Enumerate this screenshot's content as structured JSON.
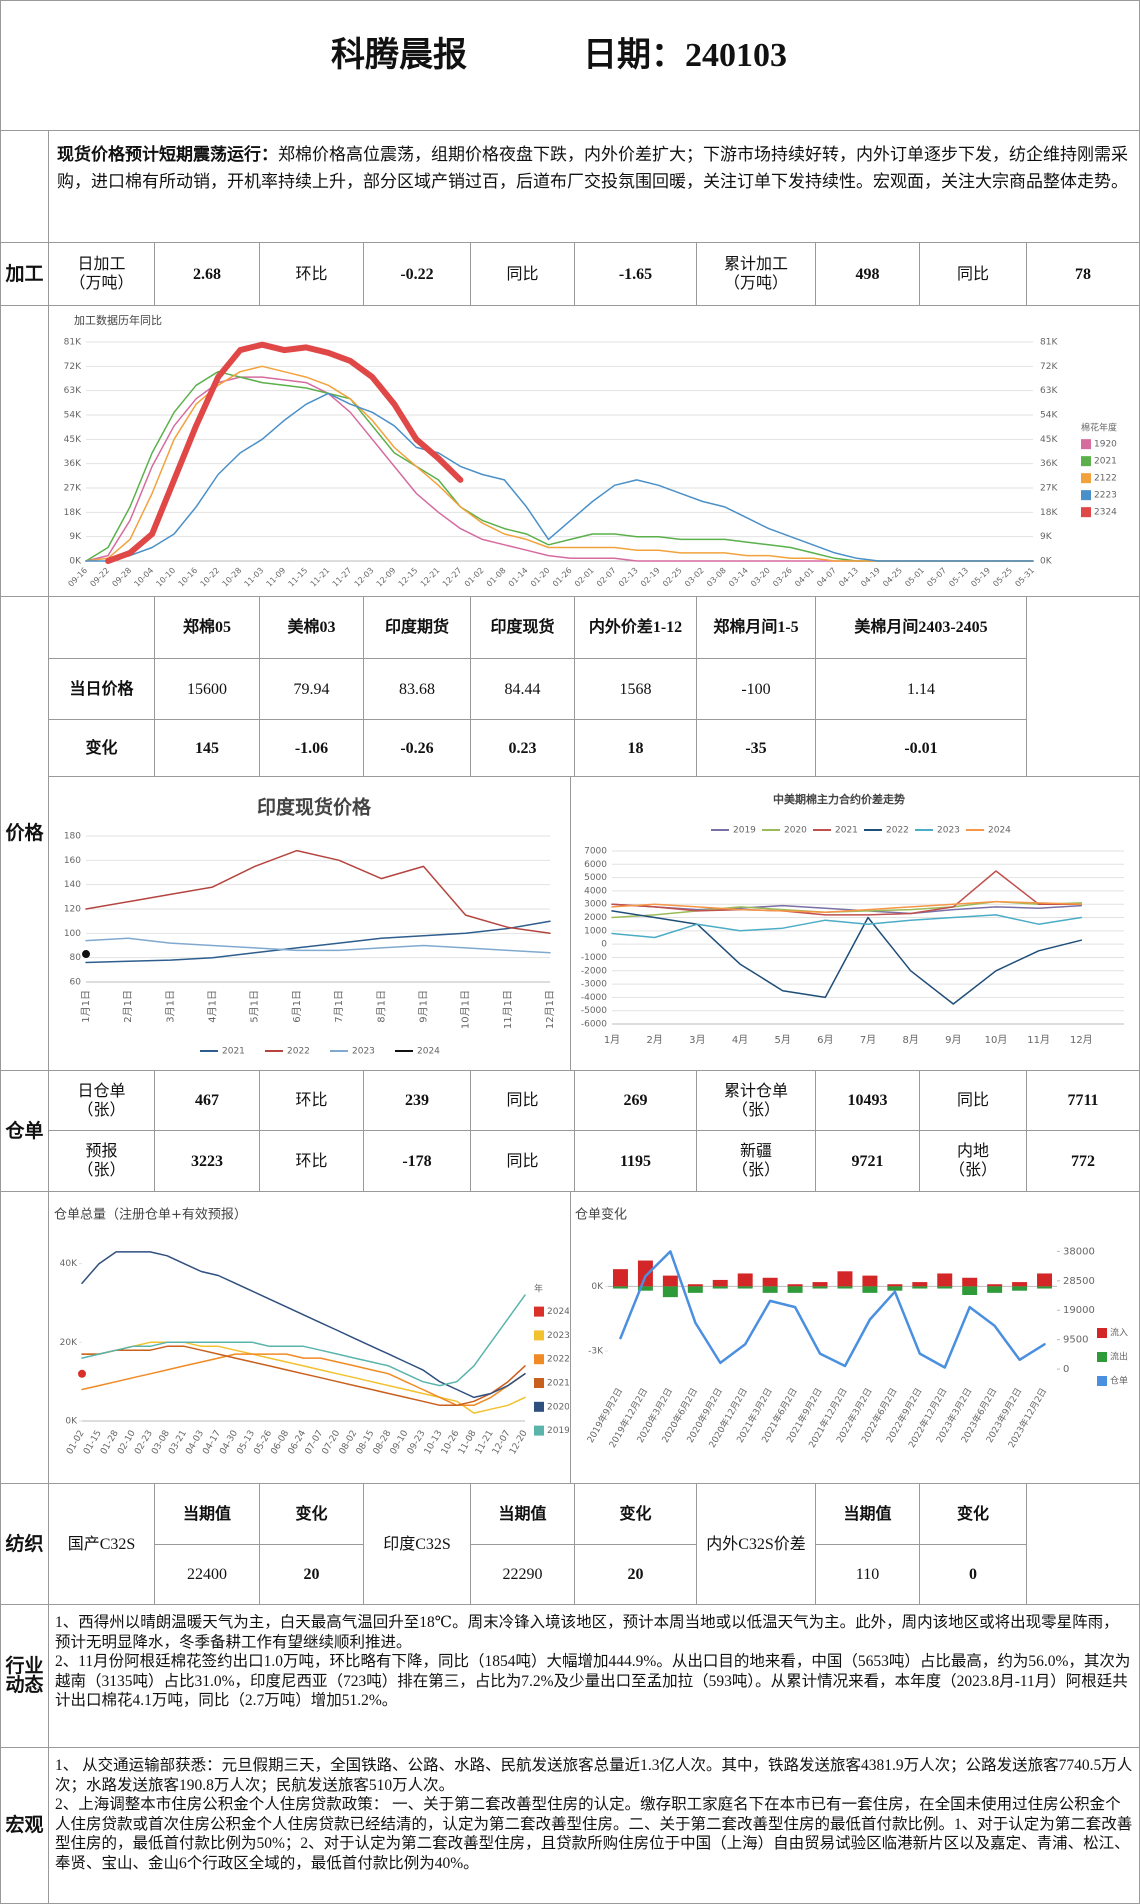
{
  "header": {
    "title": "科腾晨报",
    "date": "日期：240103"
  },
  "summary": {
    "lead": "现货价格预计短期震荡运行：",
    "text": "郑棉价格高位震荡，组期价格夜盘下跌，内外价差扩大；下游市场持续好转，内外订单逐步下发，纺企维持刚需采购，进口棉有所动销，开机率持续上升，部分区域产销过百，后道布厂交投氛围回暖，关注订单下发持续性。宏观面，关注大宗商品整体走势。"
  },
  "processing": {
    "label": "加工",
    "cells": [
      "日加工\n（万吨）",
      2.68,
      "环比",
      -0.22,
      "同比",
      -1.65,
      "累计加工\n（万吨）",
      498,
      "同比",
      78
    ]
  },
  "prices": {
    "label": "价格",
    "header": [
      "郑棉05",
      "美棉03",
      "印度期货",
      "印度现货",
      "内外价差1-12",
      "郑棉月间1-5",
      "美棉月间2403-2405"
    ],
    "rows": [
      {
        "name": "当日价格",
        "values": [
          15600,
          79.94,
          83.68,
          84.44,
          1568,
          -100,
          1.14
        ]
      },
      {
        "name": "变化",
        "values": [
          145,
          -1.06,
          -0.26,
          0.23,
          18,
          -35,
          -0.01
        ]
      }
    ]
  },
  "warehouse": {
    "label": "仓单",
    "rows": [
      [
        "日仓单\n（张）",
        467,
        "环比",
        239,
        "同比",
        269,
        "累计仓单\n（张）",
        10493,
        "同比",
        7711
      ],
      [
        "预报\n（张）",
        3223,
        "环比",
        -178,
        "同比",
        1195,
        "新疆\n（张）",
        9721,
        "内地\n（张）",
        772
      ]
    ]
  },
  "textile": {
    "label": "纺织",
    "groups": [
      {
        "name": "国产C32S",
        "headers": [
          "当期值",
          "变化"
        ],
        "values": [
          22400,
          20
        ]
      },
      {
        "name": "印度C32S",
        "headers": [
          "当期值",
          "变化"
        ],
        "values": [
          22290,
          20
        ]
      },
      {
        "name": "内外C32S价差",
        "headers": [
          "当期值",
          "变化"
        ],
        "values": [
          110,
          0
        ]
      }
    ]
  },
  "industry": {
    "label": "行业\n动态",
    "paragraphs": [
      "1、西得州以晴朗温暖天气为主，白天最高气温回升至18℃。周末冷锋入境该地区，预计本周当地或以低温天气为主。此外，周内该地区或将出现零星阵雨，预计无明显降水，冬季备耕工作有望继续顺利推进。",
      "2、11月份阿根廷棉花签约出口1.0万吨，环比略有下降，同比（1854吨）大幅增加444.9%。从出口目的地来看，中国（5653吨）占比最高，约为56.0%，其次为越南（3135吨）占比31.0%，印度尼西亚（723吨）排在第三，占比为7.2%及少量出口至孟加拉（593吨）。从累计情况来看，本年度（2023.8月-11月）阿根廷共计出口棉花4.1万吨，同比（2.7万吨）增加51.2%。"
    ]
  },
  "macro": {
    "label": "宏观",
    "paragraphs": [
      "1、 从交通运输部获悉：元旦假期三天，全国铁路、公路、水路、民航发送旅客总量近1.3亿人次。其中，铁路发送旅客4381.9万人次；公路发送旅客7740.5万人次；水路发送旅客190.8万人次；民航发送旅客510万人次。",
      "2、上海调整本市住房公积金个人住房贷款政策： 一、关于第二套改善型住房的认定。缴存职工家庭名下在本市已有一套住房，在全国未使用过住房公积金个人住房贷款或首次住房公积金个人住房贷款已经结清的，认定为第二套改善型住房。二、关于第二套改善型住房的最低首付款比例。1、对于认定为第二套改善型住房的，最低首付款比例为50%；2、对于认定为第二套改善型住房，且贷款所购住房位于中国（上海）自由贸易试验区临港新片区以及嘉定、青浦、松江、奉贤、宝山、金山6个行政区全域的，最低首付款比例为40%。"
    ]
  },
  "charts": [
    {
      "type": "line",
      "title": "加工数据历年同比",
      "legend": "right",
      "legend_title": "棉花年度",
      "grid": true,
      "mirror_y": true,
      "categories": [
        "09-16",
        "09-22",
        "09-28",
        "10-04",
        "10-10",
        "10-16",
        "10-22",
        "10-28",
        "11-03",
        "11-09",
        "11-15",
        "11-21",
        "11-27",
        "12-03",
        "12-09",
        "12-15",
        "12-21",
        "12-27",
        "01-02",
        "01-08",
        "01-14",
        "01-20",
        "01-26",
        "02-01",
        "02-07",
        "02-13",
        "02-19",
        "02-25",
        "03-02",
        "03-08",
        "03-14",
        "03-20",
        "03-26",
        "04-01",
        "04-07",
        "04-13",
        "04-19",
        "04-25",
        "05-01",
        "05-07",
        "05-13",
        "05-19",
        "05-25",
        "05-31"
      ],
      "ylim": [
        0,
        81
      ],
      "yticks": [
        {
          "value": 0,
          "label": "0K"
        },
        {
          "value": 9,
          "label": "9K"
        },
        {
          "value": 18,
          "label": "18K"
        },
        {
          "value": 27,
          "label": "27K"
        },
        {
          "value": 36,
          "label": "36K"
        },
        {
          "value": 45,
          "label": "45K"
        },
        {
          "value": 54,
          "label": "54K"
        },
        {
          "value": 63,
          "label": "63K"
        },
        {
          "value": 72,
          "label": "72K"
        },
        {
          "value": 81,
          "label": "81K"
        }
      ],
      "series": [
        {
          "name": "1920",
          "color": "#d66ba0",
          "values": [
            0,
            2,
            15,
            35,
            50,
            60,
            66,
            68,
            68,
            67,
            66,
            62,
            55,
            45,
            35,
            25,
            18,
            12,
            8,
            6,
            4,
            2,
            1,
            1,
            1,
            0,
            0,
            0,
            0,
            0,
            0,
            0,
            0,
            0,
            0,
            0,
            0,
            0,
            0,
            0,
            0,
            0,
            0,
            0
          ]
        },
        {
          "name": "2021",
          "color": "#5bb04b",
          "values": [
            0,
            5,
            20,
            40,
            55,
            65,
            70,
            68,
            66,
            65,
            64,
            62,
            60,
            50,
            40,
            35,
            30,
            20,
            15,
            12,
            10,
            6,
            8,
            10,
            10,
            9,
            9,
            8,
            8,
            8,
            7,
            6,
            5,
            3,
            1,
            0,
            0,
            0,
            0,
            0,
            0,
            0,
            0,
            0
          ]
        },
        {
          "name": "2122",
          "color": "#f2a23c",
          "values": [
            0,
            1,
            8,
            25,
            45,
            58,
            65,
            70,
            72,
            70,
            68,
            65,
            60,
            52,
            42,
            35,
            28,
            20,
            14,
            10,
            8,
            5,
            5,
            5,
            5,
            4,
            4,
            3,
            3,
            3,
            2,
            2,
            1,
            1,
            0,
            0,
            0,
            0,
            0,
            0,
            0,
            0,
            0,
            0
          ]
        },
        {
          "name": "2223",
          "color": "#4a90c8",
          "values": [
            0,
            0,
            2,
            5,
            10,
            20,
            32,
            40,
            45,
            52,
            58,
            62,
            58,
            55,
            50,
            42,
            40,
            35,
            32,
            30,
            20,
            8,
            15,
            22,
            28,
            30,
            28,
            25,
            22,
            20,
            16,
            12,
            9,
            6,
            3,
            1,
            0,
            0,
            0,
            0,
            0,
            0,
            0,
            0
          ]
        },
        {
          "name": "2324",
          "color": "#e04848",
          "line_width": 6,
          "values": [
            null,
            0,
            3,
            10,
            30,
            50,
            68,
            78,
            80,
            78,
            79,
            77,
            74,
            68,
            58,
            45,
            38,
            30,
            null,
            null,
            null,
            null,
            null,
            null,
            null,
            null,
            null,
            null,
            null,
            null,
            null,
            null,
            null,
            null,
            null,
            null,
            null,
            null,
            null,
            null,
            null,
            null,
            null,
            null
          ]
        }
      ]
    },
    {
      "type": "line",
      "title": "印度现货价格",
      "legend": "bottom",
      "grid": true,
      "categories": [
        "1月1日",
        "2月1日",
        "3月1日",
        "4月1日",
        "5月1日",
        "6月1日",
        "7月1日",
        "8月1日",
        "9月1日",
        "10月1日",
        "11月1日",
        "12月1日"
      ],
      "ylim": [
        60,
        180
      ],
      "yticks": [
        60,
        80,
        100,
        120,
        140,
        160,
        180
      ],
      "series": [
        {
          "name": "2021",
          "color": "#2e5d8e",
          "values": [
            76,
            77,
            78,
            80,
            84,
            88,
            92,
            96,
            98,
            100,
            104,
            110
          ]
        },
        {
          "name": "2022",
          "color": "#b5443f",
          "values": [
            120,
            126,
            132,
            138,
            155,
            168,
            160,
            145,
            155,
            115,
            105,
            100
          ]
        },
        {
          "name": "2023",
          "color": "#7fa9cf",
          "values": [
            94,
            96,
            92,
            90,
            88,
            86,
            86,
            88,
            90,
            88,
            86,
            84
          ]
        },
        {
          "name": "2024",
          "color": "#111111",
          "values": [
            83,
            null,
            null,
            null,
            null,
            null,
            null,
            null,
            null,
            null,
            null,
            null
          ]
        }
      ]
    },
    {
      "type": "line",
      "title": "中美期棉主力合约价差走势",
      "legend": "top",
      "grid": true,
      "categories": [
        "1月",
        "2月",
        "3月",
        "4月",
        "5月",
        "6月",
        "7月",
        "8月",
        "9月",
        "10月",
        "11月",
        "12月"
      ],
      "ylim": [
        -6000,
        7000
      ],
      "yticks": [
        -6000,
        -5000,
        -4000,
        -3000,
        -2000,
        -1000,
        0,
        1000,
        2000,
        3000,
        4000,
        5000,
        6000,
        7000
      ],
      "series": [
        {
          "name": "2019",
          "color": "#7a6fa6",
          "values": [
            3000,
            2800,
            2600,
            2700,
            2900,
            2700,
            2500,
            2300,
            2600,
            2800,
            2700,
            2900
          ]
        },
        {
          "name": "2020",
          "color": "#9bbb59",
          "values": [
            2000,
            2200,
            2500,
            2800,
            2600,
            2400,
            2500,
            2600,
            2800,
            3200,
            3000,
            3100
          ]
        },
        {
          "name": "2021",
          "color": "#c0504d",
          "values": [
            3000,
            2800,
            2500,
            2600,
            2500,
            2200,
            2200,
            2300,
            2800,
            5500,
            3000,
            3000
          ]
        },
        {
          "name": "2022",
          "color": "#1f4e79",
          "values": [
            2500,
            2000,
            1500,
            -1500,
            -3500,
            -4000,
            2000,
            -2000,
            -4500,
            -2000,
            -500,
            300
          ]
        },
        {
          "name": "2023",
          "color": "#4bacc6",
          "values": [
            800,
            500,
            1500,
            1000,
            1200,
            1800,
            1500,
            1800,
            2000,
            2200,
            1500,
            2000
          ]
        },
        {
          "name": "2024",
          "color": "#f79646",
          "values": [
            2800,
            3000,
            2800,
            2600,
            2500,
            2400,
            2600,
            2800,
            3000,
            3200,
            3100,
            3000
          ]
        }
      ]
    },
    {
      "type": "line",
      "title": "仓单总量（注册仓单+有效预报）",
      "legend": "right",
      "legend_title": "年",
      "grid": false,
      "categories": [
        "01-02",
        "01-15",
        "01-28",
        "02-10",
        "02-23",
        "03-08",
        "03-21",
        "04-03",
        "04-17",
        "04-30",
        "05-13",
        "05-26",
        "06-08",
        "06-24",
        "07-07",
        "07-20",
        "08-02",
        "08-15",
        "08-28",
        "09-10",
        "09-23",
        "10-13",
        "10-26",
        "11-08",
        "11-21",
        "12-07",
        "12-20"
      ],
      "ylim": [
        0,
        45
      ],
      "yticks": [
        {
          "value": 0,
          "label": "0K"
        },
        {
          "value": 20,
          "label": "20K"
        },
        {
          "value": 40,
          "label": "40K"
        }
      ],
      "series": [
        {
          "name": "2024",
          "color": "#d9302a",
          "values": [
            12,
            null,
            null,
            null,
            null,
            null,
            null,
            null,
            null,
            null,
            null,
            null,
            null,
            null,
            null,
            null,
            null,
            null,
            null,
            null,
            null,
            null,
            null,
            null,
            null,
            null,
            null
          ]
        },
        {
          "name": "2023",
          "color": "#f2c12e",
          "values": [
            17,
            17,
            18,
            19,
            20,
            20,
            20,
            19,
            19,
            18,
            17,
            16,
            15,
            14,
            13,
            12,
            11,
            10,
            9,
            8,
            7,
            6,
            5,
            2,
            3,
            4,
            6
          ]
        },
        {
          "name": "2022",
          "color": "#f08a24",
          "values": [
            8,
            9,
            10,
            11,
            12,
            13,
            14,
            15,
            16,
            17,
            17,
            17,
            17,
            16,
            16,
            15,
            14,
            13,
            12,
            10,
            8,
            6,
            4,
            4,
            6,
            9,
            12
          ]
        },
        {
          "name": "2021",
          "color": "#c95f1c",
          "values": [
            17,
            17,
            18,
            18,
            18,
            19,
            19,
            18,
            17,
            16,
            15,
            14,
            13,
            12,
            11,
            10,
            9,
            8,
            7,
            6,
            5,
            4,
            4,
            5,
            7,
            10,
            14
          ]
        },
        {
          "name": "2020",
          "color": "#2f4f7f",
          "values": [
            35,
            40,
            43,
            43,
            43,
            42,
            40,
            38,
            37,
            35,
            33,
            31,
            29,
            27,
            25,
            23,
            21,
            19,
            17,
            15,
            13,
            10,
            8,
            6,
            7,
            9,
            12
          ]
        },
        {
          "name": "2019",
          "color": "#5ab4ac",
          "values": [
            16,
            17,
            18,
            19,
            19,
            20,
            20,
            20,
            20,
            20,
            20,
            19,
            19,
            19,
            18,
            17,
            16,
            15,
            14,
            12,
            10,
            9,
            10,
            14,
            20,
            26,
            32
          ]
        }
      ]
    },
    {
      "type": "combo",
      "title": "仓单变化",
      "legend": "right",
      "grid": false,
      "categories": [
        "2019年9月2日",
        "2019年12月2日",
        "2020年3月2日",
        "2020年6月2日",
        "2020年9月2日",
        "2020年12月2日",
        "2021年3月2日",
        "2021年6月2日",
        "2021年9月2日",
        "2021年12月2日",
        "2022年3月2日",
        "2022年6月2日",
        "2022年9月2日",
        "2022年12月2日",
        "2023年3月2日",
        "2023年6月2日",
        "2023年9月2日",
        "2023年12月2日"
      ],
      "ylim": [
        -4.3,
        2.2
      ],
      "yticks": [
        {
          "value": 0,
          "label": "0K"
        },
        {
          "value": -3,
          "label": "-3K"
        }
      ],
      "y2lim": [
        -3200,
        42000
      ],
      "y2ticks": [
        0,
        9500,
        19000,
        28500,
        38000
      ],
      "series": [
        {
          "name": "流入",
          "type": "bar",
          "color": "#d32626",
          "values": [
            0.8,
            1.2,
            0.5,
            0.1,
            0.3,
            0.6,
            0.4,
            0.1,
            0.2,
            0.7,
            0.5,
            0.1,
            0.2,
            0.6,
            0.4,
            0.1,
            0.2,
            0.6
          ]
        },
        {
          "name": "流出",
          "type": "bar",
          "color": "#2e9a3a",
          "values": [
            -0.1,
            -0.2,
            -0.5,
            -0.3,
            -0.1,
            -0.1,
            -0.3,
            -0.3,
            -0.1,
            -0.1,
            -0.3,
            -0.2,
            -0.1,
            -0.1,
            -0.4,
            -0.3,
            -0.2,
            -0.1
          ]
        },
        {
          "name": "仓单",
          "type": "line",
          "axis": "y2",
          "color": "#4a8fe0",
          "line_width": 2.5,
          "values": [
            10000,
            30000,
            38000,
            15000,
            2000,
            8000,
            22000,
            20000,
            5000,
            1000,
            16000,
            25000,
            5000,
            500,
            20000,
            14000,
            3000,
            8000
          ]
        }
      ]
    }
  ]
}
